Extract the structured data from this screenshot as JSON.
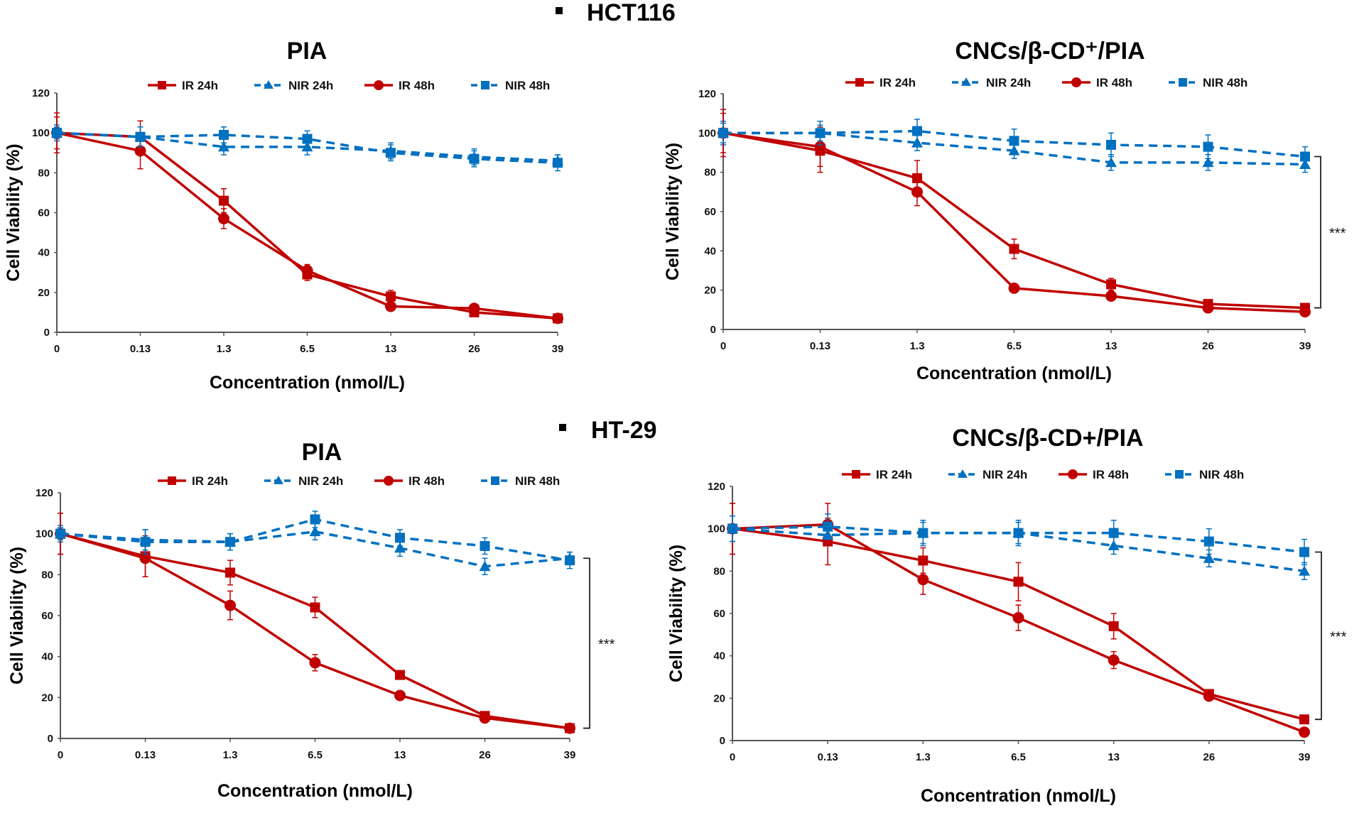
{
  "sections": [
    {
      "label": "HCT116",
      "bullet": "■"
    },
    {
      "label": "HT-29",
      "bullet": "■"
    }
  ],
  "colors": {
    "ir": "#C00000",
    "nir": "#0070C0",
    "axis": "#555555"
  },
  "legend": [
    {
      "name": "IR 24h",
      "color": "ir",
      "marker": "square",
      "dash": false
    },
    {
      "name": "NIR 24h",
      "color": "nir",
      "marker": "triangle",
      "dash": true
    },
    {
      "name": "IR 48h",
      "color": "ir",
      "marker": "circle",
      "dash": false
    },
    {
      "name": "NIR 48h",
      "color": "nir",
      "marker": "square",
      "dash": true
    }
  ],
  "chart_data": [
    {
      "type": "line",
      "section": "HCT116",
      "title": "PIA",
      "xlabel": "Concentration (nmol/L)",
      "ylabel": "Cell Viability (%)",
      "categories": [
        "0",
        "0.13",
        "1.3",
        "6.5",
        "13",
        "26",
        "39"
      ],
      "ylim": [
        0,
        120
      ],
      "yticks": [
        0,
        20,
        40,
        60,
        80,
        100,
        120
      ],
      "grid": false,
      "legend_position": "top",
      "significance": null,
      "series": [
        {
          "name": "IR 24h",
          "values": [
            100,
            98,
            66,
            29,
            18,
            10,
            7
          ],
          "errors": [
            10,
            8,
            6,
            3,
            3,
            2,
            2
          ]
        },
        {
          "name": "NIR 24h",
          "values": [
            100,
            98,
            93,
            93,
            91,
            88,
            86
          ],
          "errors": [
            4,
            5,
            4,
            4,
            4,
            4,
            3
          ]
        },
        {
          "name": "IR 48h",
          "values": [
            100,
            91,
            57,
            31,
            13,
            12,
            7
          ],
          "errors": [
            8,
            9,
            5,
            3,
            2,
            2,
            2
          ]
        },
        {
          "name": "NIR 48h",
          "values": [
            100,
            98,
            99,
            97,
            90,
            87,
            85
          ],
          "errors": [
            3,
            5,
            4,
            4,
            4,
            4,
            4
          ]
        }
      ]
    },
    {
      "type": "line",
      "section": "HCT116",
      "title": "CNCs/β-CD⁺/PIA",
      "xlabel": "Concentration (nmol/L)",
      "ylabel": "Cell Viability (%)",
      "categories": [
        "0",
        "0.13",
        "1.3",
        "6.5",
        "13",
        "26",
        "39"
      ],
      "ylim": [
        0,
        120
      ],
      "yticks": [
        0,
        20,
        40,
        60,
        80,
        100,
        120
      ],
      "grid": false,
      "legend_position": "top",
      "significance": {
        "label": "***",
        "from": 88,
        "to": 11
      },
      "series": [
        {
          "name": "IR 24h",
          "values": [
            100,
            91,
            77,
            41,
            23,
            13,
            11
          ],
          "errors": [
            12,
            11,
            9,
            5,
            3,
            2,
            2
          ]
        },
        {
          "name": "NIR 24h",
          "values": [
            100,
            100,
            95,
            91,
            85,
            85,
            84
          ],
          "errors": [
            6,
            4,
            4,
            4,
            4,
            4,
            4
          ]
        },
        {
          "name": "IR 48h",
          "values": [
            100,
            93,
            70,
            21,
            17,
            11,
            9
          ],
          "errors": [
            10,
            10,
            7,
            2,
            2,
            2,
            2
          ]
        },
        {
          "name": "NIR 48h",
          "values": [
            100,
            100,
            101,
            96,
            94,
            93,
            88
          ],
          "errors": [
            5,
            6,
            6,
            6,
            6,
            6,
            5
          ]
        }
      ]
    },
    {
      "type": "line",
      "section": "HT-29",
      "title": "PIA",
      "xlabel": "Concentration (nmol/L)",
      "ylabel": "Cell Viability (%)",
      "categories": [
        "0",
        "0.13",
        "1.3",
        "6.5",
        "13",
        "26",
        "39"
      ],
      "ylim": [
        0,
        120
      ],
      "yticks": [
        0,
        20,
        40,
        60,
        80,
        100,
        120
      ],
      "grid": false,
      "legend_position": "top",
      "significance": {
        "label": "***",
        "from": 88,
        "to": 5
      },
      "series": [
        {
          "name": "IR 24h",
          "values": [
            100,
            89,
            81,
            64,
            31,
            11,
            5
          ],
          "errors": [
            10,
            10,
            6,
            5,
            2,
            1,
            1
          ]
        },
        {
          "name": "NIR 24h",
          "values": [
            100,
            97,
            96,
            101,
            93,
            84,
            88
          ],
          "errors": [
            4,
            5,
            4,
            4,
            4,
            4,
            3
          ]
        },
        {
          "name": "IR 48h",
          "values": [
            100,
            88,
            65,
            37,
            21,
            10,
            5
          ],
          "errors": [
            10,
            9,
            7,
            4,
            2,
            1,
            1
          ]
        },
        {
          "name": "NIR 48h",
          "values": [
            100,
            96,
            96,
            107,
            98,
            94,
            87
          ],
          "errors": [
            3,
            6,
            4,
            4,
            4,
            4,
            4
          ]
        }
      ]
    },
    {
      "type": "line",
      "section": "HT-29",
      "title": "CNCs/β-CD+/PIA",
      "xlabel": "Concentration (nmol/L)",
      "ylabel": "Cell Viability (%)",
      "categories": [
        "0",
        "0.13",
        "1.3",
        "6.5",
        "13",
        "26",
        "39"
      ],
      "ylim": [
        0,
        120
      ],
      "yticks": [
        0,
        20,
        40,
        60,
        80,
        100,
        120
      ],
      "grid": false,
      "legend_position": "top",
      "significance": {
        "label": "***",
        "from": 89,
        "to": 10
      },
      "series": [
        {
          "name": "IR 24h",
          "values": [
            100,
            94,
            85,
            75,
            54,
            22,
            10
          ],
          "errors": [
            12,
            11,
            6,
            9,
            6,
            2,
            1
          ]
        },
        {
          "name": "NIR 24h",
          "values": [
            100,
            97,
            98,
            98,
            92,
            86,
            80
          ],
          "errors": [
            6,
            5,
            5,
            5,
            4,
            4,
            4
          ]
        },
        {
          "name": "IR 48h",
          "values": [
            100,
            102,
            76,
            58,
            38,
            21,
            4
          ],
          "errors": [
            12,
            10,
            7,
            6,
            4,
            2,
            1
          ]
        },
        {
          "name": "NIR 48h",
          "values": [
            100,
            101,
            98,
            98,
            98,
            94,
            89
          ],
          "errors": [
            6,
            6,
            6,
            6,
            6,
            6,
            6
          ]
        }
      ]
    }
  ]
}
